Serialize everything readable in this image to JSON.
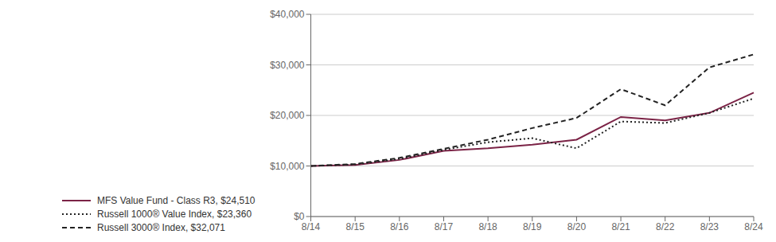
{
  "chart_data": {
    "type": "line",
    "categories": [
      "8/14",
      "8/15",
      "8/16",
      "8/17",
      "8/18",
      "8/19",
      "8/20",
      "8/21",
      "8/22",
      "8/23",
      "8/24"
    ],
    "series": [
      {
        "name": "MFS Value Fund - Class R3, $24,510",
        "color": "#7B2346",
        "line_style": "solid",
        "values": [
          10000,
          10200,
          11200,
          13000,
          13500,
          14200,
          15200,
          19700,
          19000,
          20500,
          24510
        ]
      },
      {
        "name": "Russell 1000® Value Index, $23,360",
        "color": "#222222",
        "line_style": "dotted",
        "values": [
          10000,
          10300,
          11400,
          13200,
          14700,
          15500,
          13500,
          18800,
          18500,
          20500,
          23360
        ]
      },
      {
        "name": "Russell 3000® Index, $32,071",
        "color": "#222222",
        "line_style": "dashed",
        "values": [
          10000,
          10400,
          11600,
          13400,
          15200,
          17500,
          19500,
          25200,
          22000,
          29500,
          32071
        ]
      }
    ],
    "ylim": [
      0,
      40000
    ],
    "yticks": [
      {
        "value": 0,
        "label": "$0"
      },
      {
        "value": 10000,
        "label": "$10,000"
      },
      {
        "value": 20000,
        "label": "$20,000"
      },
      {
        "value": 30000,
        "label": "$30,000"
      },
      {
        "value": 40000,
        "label": "$40,000"
      }
    ],
    "grid": "y",
    "legend": "bottom left"
  }
}
